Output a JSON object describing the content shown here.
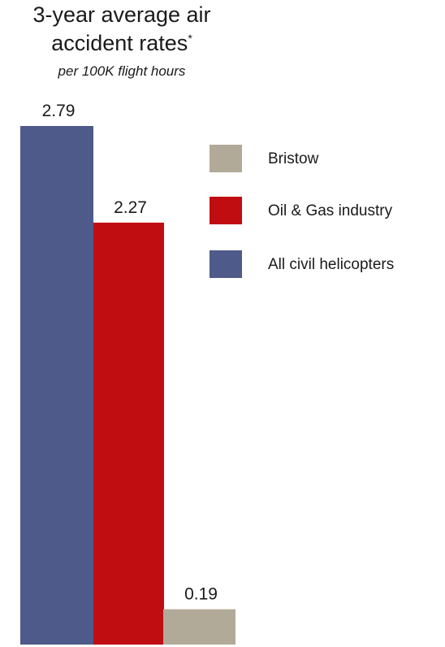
{
  "chart_data": {
    "type": "bar",
    "title_line_1": "3-year average air",
    "title_line_2": "accident rates",
    "title_marker": "*",
    "subtitle": "per 100K flight hours",
    "categories": [
      "All civil helicopters",
      "Oil & Gas industry",
      "Bristow"
    ],
    "series": [
      {
        "name": "All civil helicopters",
        "color": "#4E5A89",
        "values": [
          2.79,
          null,
          null
        ]
      },
      {
        "name": "Oil & Gas industry",
        "color": "#C00D12",
        "values": [
          null,
          2.27,
          null
        ]
      },
      {
        "name": "Bristow",
        "color": "#B2AA98",
        "values": [
          null,
          null,
          0.19
        ]
      }
    ],
    "values": [
      2.79,
      2.27,
      0.19
    ],
    "value_labels": [
      "2.79",
      "2.27",
      "0.19"
    ],
    "legend": {
      "placement": "top-right",
      "entries": [
        {
          "label": "Bristow",
          "color": "#B2AA98"
        },
        {
          "label": "Oil & Gas industry",
          "color": "#C00D12"
        },
        {
          "label": "All civil helicopters",
          "color": "#4E5A89"
        }
      ]
    },
    "ylim": [
      0,
      2.79
    ],
    "grid": false,
    "axes_visible": false
  }
}
